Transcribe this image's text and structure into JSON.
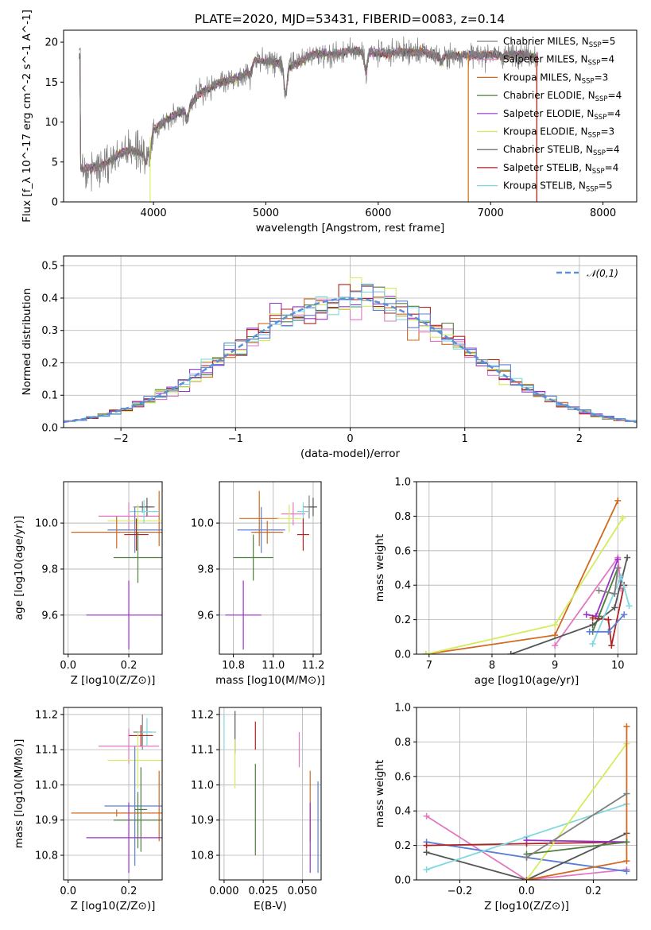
{
  "title": "PLATE=2020, MJD=53431, FIBERID=0083, z=0.14",
  "colors": {
    "Chabrier MILES": "#7f7f7f",
    "Salpeter MILES": "#e377c2",
    "Kroupa MILES": "#d2691e",
    "Chabrier ELODIE": "#4f7f3f",
    "Salpeter ELODIE": "#9932cc",
    "Kroupa ELODIE": "#d4ec5c",
    "Chabrier STELIB": "#555555",
    "Salpeter STELIB": "#b22222",
    "Kroupa STELIB": "#7fd8e0",
    "Blue": "#5b7fd6",
    "normal_line": "#5b8fd6"
  },
  "chart_data": [
    {
      "type": "line",
      "name": "spectrum",
      "xlabel": "wavelength [Angstrom, rest frame]",
      "ylabel": "Flux [f_λ 10^-17 erg cm^-2 s^-1 A^-1]",
      "xlim": [
        3200,
        8300
      ],
      "ylim": [
        0,
        21.5
      ],
      "xticks": [
        "4000",
        "5000",
        "6000",
        "7000",
        "8000"
      ],
      "yticks": [
        "0",
        "5",
        "10",
        "15",
        "20"
      ],
      "legend_position": "top-right",
      "legend": [
        {
          "label": "Chabrier MILES, N_SSP=5",
          "color_key": "Chabrier MILES"
        },
        {
          "label": "Salpeter MILES, N_SSP=4",
          "color_key": "Salpeter MILES"
        },
        {
          "label": "Kroupa MILES, N_SSP=3",
          "color_key": "Kroupa MILES"
        },
        {
          "label": "Chabrier ELODIE, N_SSP=4",
          "color_key": "Chabrier ELODIE"
        },
        {
          "label": "Salpeter ELODIE, N_SSP=4",
          "color_key": "Salpeter ELODIE"
        },
        {
          "label": "Kroupa ELODIE, N_SSP=3",
          "color_key": "Kroupa ELODIE"
        },
        {
          "label": "Chabrier STELIB, N_SSP=4",
          "color_key": "Chabrier STELIB"
        },
        {
          "label": "Salpeter STELIB, N_SSP=4",
          "color_key": "Salpeter STELIB"
        },
        {
          "label": "Kroupa STELIB, N_SSP=5",
          "color_key": "Kroupa STELIB"
        }
      ],
      "continuum": [
        [
          3350,
          4.2
        ],
        [
          3500,
          4.3
        ],
        [
          3600,
          5.0
        ],
        [
          3700,
          6.0
        ],
        [
          3800,
          6.5
        ],
        [
          3900,
          6.0
        ],
        [
          4000,
          9.0
        ],
        [
          4100,
          10.2
        ],
        [
          4200,
          11.0
        ],
        [
          4300,
          11.5
        ],
        [
          4400,
          13.5
        ],
        [
          4500,
          14.2
        ],
        [
          4600,
          15.0
        ],
        [
          4700,
          15.3
        ],
        [
          4800,
          15.8
        ],
        [
          4900,
          17.8
        ],
        [
          5000,
          17.6
        ],
        [
          5100,
          17.4
        ],
        [
          5200,
          16.8
        ],
        [
          5300,
          17.5
        ],
        [
          5400,
          18.4
        ],
        [
          5500,
          18.6
        ],
        [
          5600,
          18.5
        ],
        [
          5700,
          18.8
        ],
        [
          5800,
          19.0
        ],
        [
          5900,
          18.8
        ],
        [
          6000,
          18.6
        ],
        [
          6100,
          18.5
        ],
        [
          6200,
          18.9
        ],
        [
          6300,
          18.7
        ],
        [
          6400,
          18.8
        ],
        [
          6500,
          18.4
        ],
        [
          6600,
          18.3
        ],
        [
          6700,
          18.3
        ],
        [
          6800,
          18.4
        ],
        [
          6900,
          18.3
        ],
        [
          7000,
          18.5
        ],
        [
          7100,
          18.3
        ],
        [
          7200,
          18.5
        ],
        [
          7300,
          18.5
        ],
        [
          7400,
          18.2
        ]
      ],
      "absorption_features": [
        [
          3933,
          2.0
        ],
        [
          3968,
          2.0
        ],
        [
          4300,
          1.0
        ],
        [
          4861,
          1.2
        ],
        [
          5175,
          3.5
        ],
        [
          5890,
          2.4
        ],
        [
          6563,
          0.8
        ]
      ],
      "spikes_to_zero": [
        [
          3970,
          "#d4ec5c"
        ],
        [
          6800,
          "#d4ec5c"
        ],
        [
          6802,
          "#d2691e"
        ],
        [
          7410,
          "#d2691e"
        ],
        [
          7412,
          "#b22222"
        ]
      ]
    },
    {
      "type": "bar",
      "name": "residual histogram",
      "xlabel": "(data-model)/error",
      "ylabel": "Normed distribution",
      "xlim": [
        -2.5,
        2.5
      ],
      "ylim": [
        0,
        0.53
      ],
      "xticks": [
        "−2",
        "−1",
        "0",
        "1",
        "2"
      ],
      "yticks": [
        "0.0",
        "0.1",
        "0.2",
        "0.3",
        "0.4",
        "0.5"
      ],
      "bin_width": 0.1,
      "legend_position": "top-right",
      "legend": [
        {
          "label": "𝒩(0,1)",
          "color_key": "normal_line"
        }
      ]
    },
    {
      "type": "scatter",
      "name": "age vs Z",
      "xlabel": "Z [log10(Z/Z⊙)]",
      "ylabel": "age  [log10(age/yr)]",
      "xlim": [
        -0.015,
        0.31
      ],
      "ylim": [
        9.43,
        10.18
      ],
      "xticks": [
        "0.0",
        "0.2"
      ],
      "yticks": [
        "9.6",
        "9.8",
        "10.0"
      ],
      "points": [
        {
          "c": "Chabrier MILES",
          "x": 0.245,
          "y": 10.07,
          "xe": 0.03,
          "ye": 0.025
        },
        {
          "c": "Salpeter MILES",
          "x": 0.2,
          "y": 10.03,
          "xe": 0.1,
          "ye": 0.06
        },
        {
          "c": "Kroupa MILES",
          "x": 0.3,
          "y": 10.02,
          "xe": 0.0,
          "ye": 0.12
        },
        {
          "c": "Kroupa ELODIE",
          "x": 0.23,
          "y": 10.01,
          "xe": 0.1,
          "ye": 0.07
        },
        {
          "c": "Chabrier STELIB",
          "x": 0.26,
          "y": 10.07,
          "xe": 0.025,
          "ye": 0.04
        },
        {
          "c": "Kroupa STELIB",
          "x": 0.25,
          "y": 10.05,
          "xe": 0.05,
          "ye": 0.05
        },
        {
          "c": "Blue",
          "x": 0.22,
          "y": 9.97,
          "xe": 0.09,
          "ye": 0.1
        },
        {
          "c": "Kroupa MILES",
          "x": 0.16,
          "y": 9.96,
          "xe": 0.15,
          "ye": 0.07
        },
        {
          "c": "Salpeter STELIB",
          "x": 0.225,
          "y": 9.95,
          "xe": 0.04,
          "ye": 0.07
        },
        {
          "c": "Chabrier ELODIE",
          "x": 0.23,
          "y": 9.85,
          "xe": 0.08,
          "ye": 0.11
        },
        {
          "c": "Salpeter ELODIE",
          "x": 0.2,
          "y": 9.6,
          "xe": 0.14,
          "ye": 0.15
        }
      ]
    },
    {
      "type": "scatter",
      "name": "age vs mass",
      "xlabel": "mass [log10(M/M⊙)]",
      "ylabel": "",
      "xlim": [
        10.73,
        11.24
      ],
      "ylim": [
        9.43,
        10.18
      ],
      "xticks": [
        "10.8",
        "11.0",
        "11.2"
      ],
      "yticks": [
        "9.6",
        "9.8",
        "10.0"
      ],
      "points": [
        {
          "c": "Chabrier MILES",
          "x": 11.18,
          "y": 10.07,
          "xe": 0.03,
          "ye": 0.05
        },
        {
          "c": "Salpeter MILES",
          "x": 11.1,
          "y": 10.04,
          "xe": 0.06,
          "ye": 0.05
        },
        {
          "c": "Kroupa MILES",
          "x": 10.93,
          "y": 10.02,
          "xe": 0.1,
          "ye": 0.12
        },
        {
          "c": "Kroupa ELODIE",
          "x": 11.08,
          "y": 10.02,
          "xe": 0.06,
          "ye": 0.06
        },
        {
          "c": "Chabrier STELIB",
          "x": 11.2,
          "y": 10.07,
          "xe": 0.02,
          "ye": 0.04
        },
        {
          "c": "Kroupa STELIB",
          "x": 11.15,
          "y": 10.05,
          "xe": 0.03,
          "ye": 0.04
        },
        {
          "c": "Blue",
          "x": 10.94,
          "y": 9.97,
          "xe": 0.12,
          "ye": 0.1
        },
        {
          "c": "Kroupa MILES",
          "x": 10.97,
          "y": 9.96,
          "xe": 0.08,
          "ye": 0.05
        },
        {
          "c": "Salpeter STELIB",
          "x": 11.15,
          "y": 9.95,
          "xe": 0.03,
          "ye": 0.07
        },
        {
          "c": "Chabrier ELODIE",
          "x": 10.9,
          "y": 9.85,
          "xe": 0.1,
          "ye": 0.1
        },
        {
          "c": "Salpeter ELODIE",
          "x": 10.85,
          "y": 9.6,
          "xe": 0.09,
          "ye": 0.15
        }
      ]
    },
    {
      "type": "line",
      "name": "mass weight vs age",
      "xlabel": "age  [log10(age/yr)]",
      "ylabel": "mass weight",
      "xlim": [
        6.8,
        10.3
      ],
      "ylim": [
        0,
        1.0
      ],
      "xticks": [
        "7",
        "8",
        "9",
        "10"
      ],
      "yticks": [
        "0.0",
        "0.2",
        "0.4",
        "0.6",
        "0.8",
        "1.0"
      ],
      "series": [
        {
          "c": "Kroupa MILES",
          "pts": [
            [
              6.95,
              0.0
            ],
            [
              9.0,
              0.11
            ],
            [
              10.0,
              0.89
            ]
          ]
        },
        {
          "c": "Kroupa ELODIE",
          "pts": [
            [
              6.95,
              0.0
            ],
            [
              9.0,
              0.17
            ],
            [
              10.08,
              0.79
            ]
          ]
        },
        {
          "c": "Salpeter MILES",
          "pts": [
            [
              9.0,
              0.05
            ],
            [
              10.0,
              0.56
            ],
            [
              10.05,
              0.38
            ]
          ]
        },
        {
          "c": "Chabrier ELODIE",
          "pts": [
            [
              9.6,
              0.13
            ],
            [
              10.0,
              0.5
            ],
            [
              9.7,
              0.22
            ]
          ]
        },
        {
          "c": "Salpeter ELODIE",
          "pts": [
            [
              9.5,
              0.23
            ],
            [
              9.65,
              0.22
            ],
            [
              10.0,
              0.55
            ]
          ]
        },
        {
          "c": "Chabrier STELIB",
          "pts": [
            [
              8.3,
              0.0
            ],
            [
              9.6,
              0.17
            ],
            [
              9.95,
              0.27
            ],
            [
              10.15,
              0.56
            ]
          ]
        },
        {
          "c": "Salpeter STELIB",
          "pts": [
            [
              9.6,
              0.21
            ],
            [
              9.85,
              0.2
            ],
            [
              9.9,
              0.05
            ],
            [
              10.1,
              0.4
            ]
          ]
        },
        {
          "c": "Kroupa STELIB",
          "pts": [
            [
              9.6,
              0.06
            ],
            [
              10.05,
              0.45
            ],
            [
              10.1,
              0.39
            ],
            [
              10.18,
              0.28
            ]
          ]
        },
        {
          "c": "Blue",
          "pts": [
            [
              9.55,
              0.13
            ],
            [
              9.85,
              0.13
            ],
            [
              10.1,
              0.23
            ]
          ]
        },
        {
          "c": "Chabrier MILES",
          "pts": [
            [
              9.7,
              0.37
            ],
            [
              9.95,
              0.35
            ],
            [
              10.0,
              0.5
            ]
          ]
        }
      ]
    },
    {
      "type": "scatter",
      "name": "mass vs Z",
      "xlabel": "Z [log10(Z/Z⊙)]",
      "ylabel": "mass [log10(M/M⊙)]",
      "xlim": [
        -0.015,
        0.31
      ],
      "ylim": [
        10.73,
        11.22
      ],
      "xticks": [
        "0.0",
        "0.2"
      ],
      "yticks": [
        "10.8",
        "10.9",
        "11.0",
        "11.1",
        "11.2"
      ],
      "points": [
        {
          "c": "Chabrier MILES",
          "x": 0.245,
          "y": 11.15,
          "xe": 0.03,
          "ye": 0.05
        },
        {
          "c": "Salpeter MILES",
          "x": 0.2,
          "y": 11.11,
          "xe": 0.1,
          "ye": 0.05
        },
        {
          "c": "Kroupa STELIB",
          "x": 0.26,
          "y": 11.15,
          "xe": 0.03,
          "ye": 0.04
        },
        {
          "c": "Salpeter STELIB",
          "x": 0.24,
          "y": 11.14,
          "xe": 0.04,
          "ye": 0.03
        },
        {
          "c": "Kroupa ELODIE",
          "x": 0.23,
          "y": 11.07,
          "xe": 0.1,
          "ye": 0.08
        },
        {
          "c": "Kroupa MILES",
          "x": 0.3,
          "y": 10.94,
          "xe": 0.0,
          "ye": 0.1
        },
        {
          "c": "Blue",
          "x": 0.22,
          "y": 10.94,
          "xe": 0.1,
          "ye": 0.17
        },
        {
          "c": "Kroupa MILES",
          "x": 0.16,
          "y": 10.92,
          "xe": 0.15,
          "ye": 0.01
        },
        {
          "c": "Chabrier ELODIE",
          "x": 0.23,
          "y": 10.9,
          "xe": 0.08,
          "ye": 0.08
        },
        {
          "c": "Chabrier ELODIE",
          "x": 0.24,
          "y": 10.93,
          "xe": 0.02,
          "ye": 0.12
        },
        {
          "c": "Salpeter ELODIE",
          "x": 0.2,
          "y": 10.85,
          "xe": 0.14,
          "ye": 0.1
        }
      ]
    },
    {
      "type": "scatter",
      "name": "mass vs E(B-V)",
      "xlabel": "E(B-V)",
      "ylabel": "",
      "xlim": [
        -0.003,
        0.062
      ],
      "ylim": [
        10.73,
        11.22
      ],
      "xticks": [
        "0.000",
        "0.025",
        "0.050"
      ],
      "yticks": [
        "10.8",
        "10.9",
        "11.0",
        "11.1",
        "11.2"
      ],
      "points": [
        {
          "c": "Kroupa STELIB",
          "x": 0.0,
          "y": 11.15,
          "xe": 0,
          "ye": 0.05
        },
        {
          "c": "Chabrier STELIB",
          "x": 0.007,
          "y": 11.15,
          "xe": 0,
          "ye": 0.06
        },
        {
          "c": "Kroupa ELODIE",
          "x": 0.007,
          "y": 11.06,
          "xe": 0,
          "ye": 0.07
        },
        {
          "c": "Salpeter STELIB",
          "x": 0.02,
          "y": 11.14,
          "xe": 0,
          "ye": 0.04
        },
        {
          "c": "Chabrier ELODIE",
          "x": 0.02,
          "y": 10.93,
          "xe": 0,
          "ye": 0.13
        },
        {
          "c": "Salpeter MILES",
          "x": 0.048,
          "y": 11.1,
          "xe": 0,
          "ye": 0.05
        },
        {
          "c": "Kroupa MILES",
          "x": 0.055,
          "y": 10.94,
          "xe": 0,
          "ye": 0.1
        },
        {
          "c": "Salpeter ELODIE",
          "x": 0.055,
          "y": 10.85,
          "xe": 0,
          "ye": 0.1
        },
        {
          "c": "Blue",
          "x": 0.06,
          "y": 10.88,
          "xe": 0,
          "ye": 0.13
        }
      ]
    },
    {
      "type": "line",
      "name": "mass weight vs Z",
      "xlabel": "Z [log10(Z/Z⊙)]",
      "ylabel": "mass weight",
      "xlim": [
        -0.33,
        0.33
      ],
      "ylim": [
        0,
        1.0
      ],
      "xticks": [
        "−0.2",
        "0.0",
        "0.2"
      ],
      "yticks": [
        "0.0",
        "0.2",
        "0.4",
        "0.6",
        "0.8",
        "1.0"
      ],
      "series": [
        {
          "c": "Salpeter MILES",
          "pts": [
            [
              -0.3,
              0.37
            ],
            [
              0.0,
              0.0
            ],
            [
              0.3,
              0.06
            ]
          ]
        },
        {
          "c": "Blue",
          "pts": [
            [
              -0.3,
              0.22
            ],
            [
              0.0,
              0.13
            ],
            [
              0.3,
              0.05
            ]
          ]
        },
        {
          "c": "Chabrier STELIB",
          "pts": [
            [
              -0.3,
              0.16
            ],
            [
              0.0,
              0.0
            ],
            [
              0.3,
              0.27
            ]
          ]
        },
        {
          "c": "Salpeter STELIB",
          "pts": [
            [
              -0.3,
              0.2
            ],
            [
              0.0,
              0.21
            ],
            [
              0.3,
              0.22
            ]
          ]
        },
        {
          "c": "Kroupa STELIB",
          "pts": [
            [
              -0.3,
              0.06
            ],
            [
              0.0,
              0.25
            ],
            [
              0.3,
              0.44
            ]
          ]
        },
        {
          "c": "Kroupa ELODIE",
          "pts": [
            [
              0.0,
              0.0
            ],
            [
              0.3,
              0.79
            ]
          ]
        },
        {
          "c": "Kroupa MILES",
          "pts": [
            [
              0.0,
              0.0
            ],
            [
              0.3,
              0.11
            ],
            [
              0.3,
              0.89
            ]
          ]
        },
        {
          "c": "Salpeter ELODIE",
          "pts": [
            [
              0.0,
              0.23
            ],
            [
              0.3,
              0.22
            ]
          ]
        },
        {
          "c": "Chabrier ELODIE",
          "pts": [
            [
              0.0,
              0.15
            ],
            [
              0.3,
              0.22
            ]
          ]
        },
        {
          "c": "Chabrier MILES",
          "pts": [
            [
              0.0,
              0.13
            ],
            [
              0.3,
              0.5
            ]
          ]
        }
      ]
    }
  ]
}
